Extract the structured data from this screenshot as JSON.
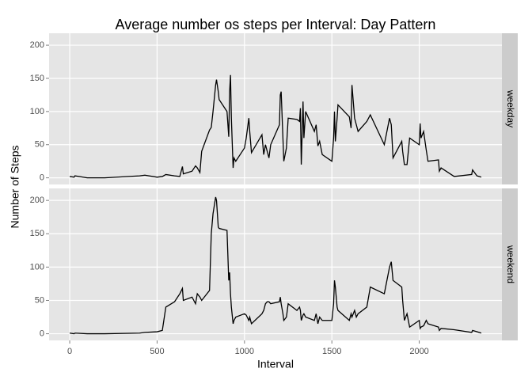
{
  "chart_data": {
    "type": "line",
    "title": "Average number os steps per Interval: Day Pattern",
    "x_label": "Interval",
    "y_label": "Number of Steps",
    "xlim": [
      -118,
      2473
    ],
    "xticks": [
      0,
      500,
      1000,
      1500,
      2000
    ],
    "ylim": [
      -10,
      218
    ],
    "yticks": [
      0,
      50,
      100,
      150,
      200
    ],
    "grid": true,
    "facet": "series",
    "x": [
      0,
      25,
      30,
      100,
      200,
      400,
      430,
      500,
      530,
      550,
      600,
      630,
      645,
      650,
      700,
      720,
      730,
      745,
      755,
      800,
      810,
      820,
      835,
      840,
      850,
      855,
      900,
      910,
      915,
      920,
      925,
      935,
      940,
      950,
      1000,
      1010,
      1025,
      1030,
      1040,
      1100,
      1110,
      1120,
      1130,
      1140,
      1150,
      1200,
      1205,
      1210,
      1220,
      1225,
      1240,
      1250,
      1300,
      1315,
      1320,
      1325,
      1335,
      1340,
      1350,
      1400,
      1410,
      1420,
      1430,
      1445,
      1500,
      1510,
      1515,
      1520,
      1530,
      1535,
      1600,
      1610,
      1615,
      1630,
      1640,
      1650,
      1700,
      1720,
      1800,
      1830,
      1840,
      1850,
      1900,
      1905,
      1915,
      1930,
      1945,
      2000,
      2005,
      2010,
      2025,
      2040,
      2050,
      2110,
      2115,
      2125,
      2200,
      2300,
      2305,
      2330,
      2355
    ],
    "series": [
      {
        "name": "weekday",
        "color": "#000000",
        "values": [
          2,
          1,
          3,
          0,
          0,
          3,
          4,
          1,
          2,
          5,
          3,
          2,
          17,
          6,
          10,
          18,
          15,
          8,
          40,
          72,
          76,
          100,
          140,
          148,
          130,
          118,
          100,
          62,
          130,
          155,
          90,
          15,
          30,
          25,
          45,
          60,
          90,
          70,
          38,
          65,
          35,
          50,
          40,
          30,
          50,
          80,
          125,
          130,
          60,
          25,
          45,
          90,
          88,
          85,
          105,
          20,
          115,
          60,
          100,
          70,
          80,
          48,
          55,
          35,
          25,
          60,
          100,
          55,
          90,
          110,
          92,
          75,
          140,
          90,
          80,
          70,
          85,
          95,
          50,
          90,
          80,
          30,
          55,
          40,
          20,
          20,
          60,
          50,
          82,
          60,
          70,
          42,
          25,
          27,
          10,
          15,
          2,
          5,
          12,
          3,
          1
        ]
      },
      {
        "name": "weekend",
        "color": "#000000",
        "values": [
          1,
          0,
          1,
          0,
          0,
          1,
          2,
          3,
          5,
          40,
          48,
          60,
          68,
          50,
          55,
          45,
          60,
          55,
          50,
          65,
          150,
          180,
          205,
          200,
          160,
          158,
          155,
          80,
          92,
          60,
          40,
          15,
          20,
          25,
          30,
          28,
          20,
          25,
          15,
          30,
          35,
          45,
          48,
          48,
          45,
          48,
          55,
          45,
          30,
          20,
          25,
          45,
          35,
          40,
          35,
          20,
          28,
          30,
          25,
          20,
          30,
          15,
          25,
          20,
          20,
          45,
          80,
          70,
          40,
          35,
          20,
          30,
          25,
          35,
          25,
          30,
          40,
          70,
          60,
          100,
          108,
          80,
          70,
          50,
          20,
          30,
          10,
          20,
          8,
          10,
          12,
          20,
          15,
          10,
          5,
          8,
          6,
          2,
          5,
          3,
          1
        ]
      }
    ]
  }
}
